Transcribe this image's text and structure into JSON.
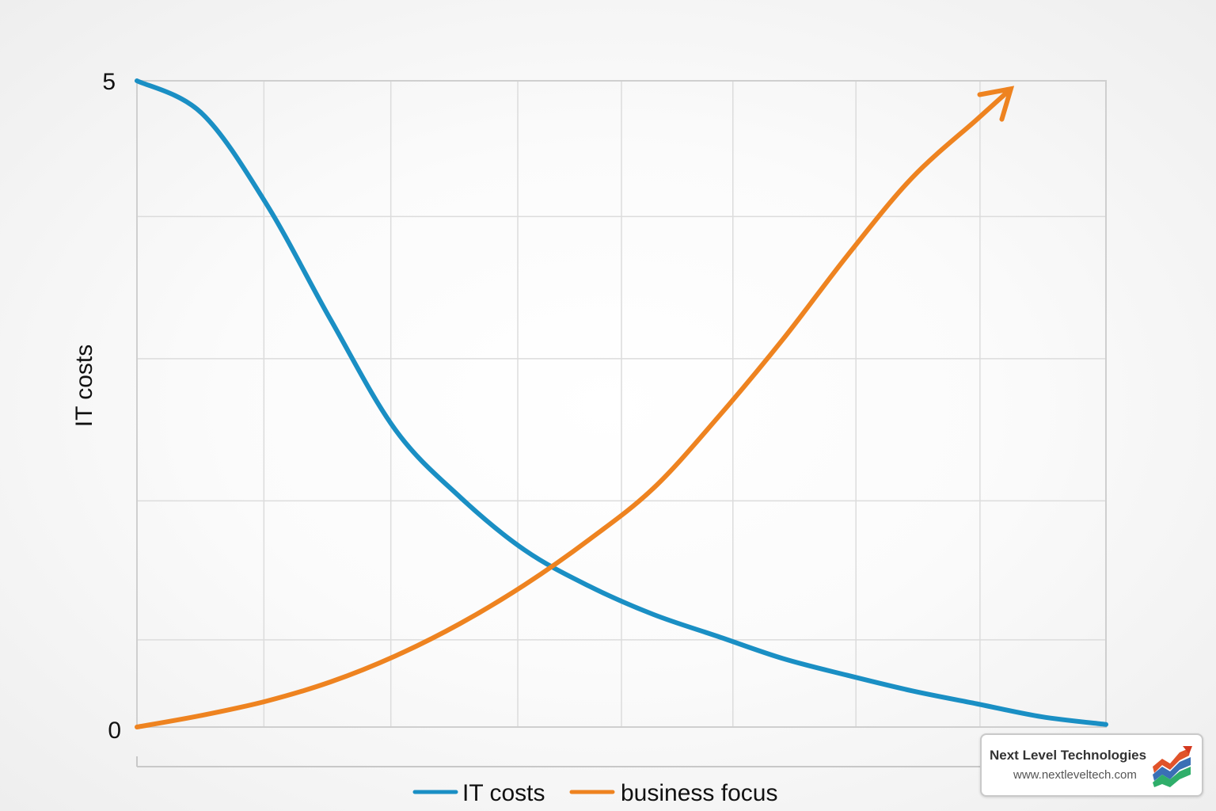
{
  "chart_data": {
    "type": "line",
    "title": "",
    "xlabel": "",
    "ylabel": "IT costs",
    "ylim": [
      0,
      5
    ],
    "y_ticks": [
      "0",
      "5"
    ],
    "grid": true,
    "legend_position": "bottom-center",
    "series": [
      {
        "name": "IT costs",
        "color": "#1a8fc4",
        "x": [
          0,
          0.5,
          1,
          1.5,
          2,
          2.5,
          3,
          3.5,
          4,
          4.5,
          5,
          5.5,
          6,
          6.5,
          7,
          7.5
        ],
        "values": [
          5.0,
          4.75,
          4.05,
          3.15,
          2.3,
          1.78,
          1.37,
          1.09,
          0.87,
          0.7,
          0.53,
          0.4,
          0.28,
          0.18,
          0.08,
          0.02
        ]
      },
      {
        "name": "business focus",
        "color": "#ee8320",
        "arrow_end": true,
        "x": [
          0,
          0.5,
          1,
          1.5,
          2,
          2.5,
          3,
          3.5,
          4,
          4.5,
          5,
          5.5,
          6,
          6.5,
          6.7
        ],
        "values": [
          0.0,
          0.09,
          0.2,
          0.35,
          0.55,
          0.8,
          1.1,
          1.45,
          1.85,
          2.4,
          3.0,
          3.65,
          4.25,
          4.7,
          4.88
        ]
      }
    ],
    "xlim": [
      0,
      7.5
    ]
  },
  "watermark": {
    "name": "Next Level Technologies",
    "url": "www.nextleveltech.com"
  },
  "colors": {
    "grid": "#dcdcdc",
    "axis": "#c8c8c8"
  }
}
